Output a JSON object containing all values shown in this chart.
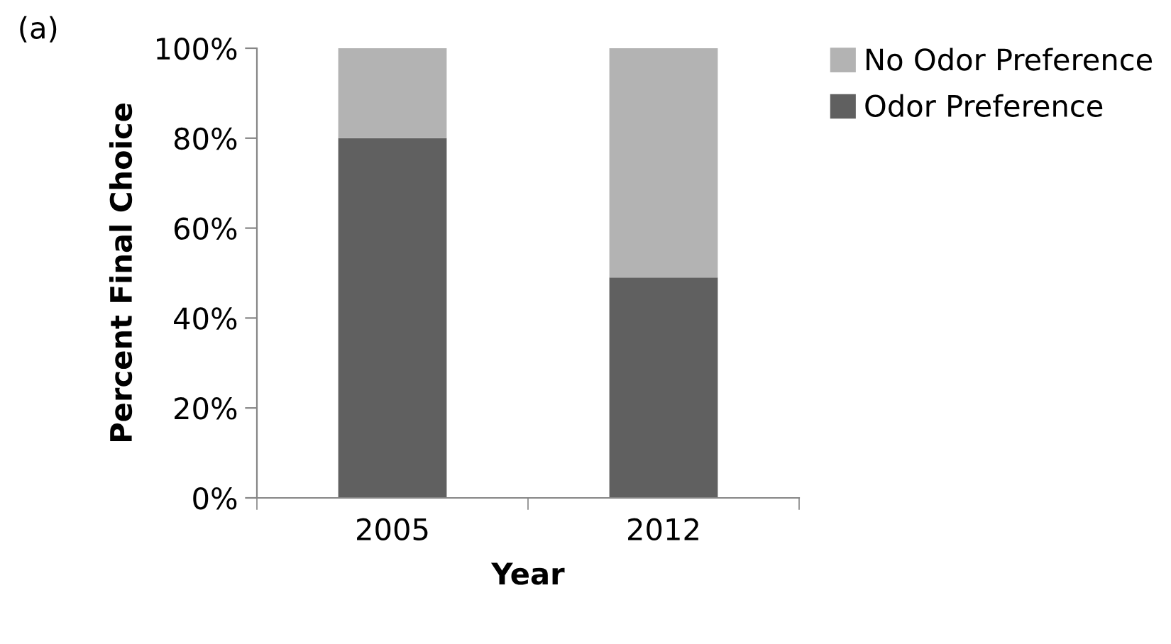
{
  "chart_data": {
    "type": "bar",
    "stacked": true,
    "xlabel": "Year",
    "ylabel": "Percent Final Choice",
    "annotations": [
      "(a)"
    ],
    "categories": [
      "2005",
      "2012"
    ],
    "series": [
      {
        "name": "Odor Preference",
        "color": "#606060",
        "values": [
          80,
          49
        ]
      },
      {
        "name": "No Odor Preference",
        "color": "#b3b3b3",
        "values": [
          20,
          51
        ]
      }
    ],
    "ylim": [
      0,
      100
    ],
    "yticks": [
      {
        "value": 0,
        "label": "0%"
      },
      {
        "value": 20,
        "label": "20%"
      },
      {
        "value": 40,
        "label": "40%"
      },
      {
        "value": 60,
        "label": "60%"
      },
      {
        "value": 80,
        "label": "80%"
      },
      {
        "value": 100,
        "label": "100%"
      }
    ],
    "grid": false,
    "legend": "top right"
  }
}
